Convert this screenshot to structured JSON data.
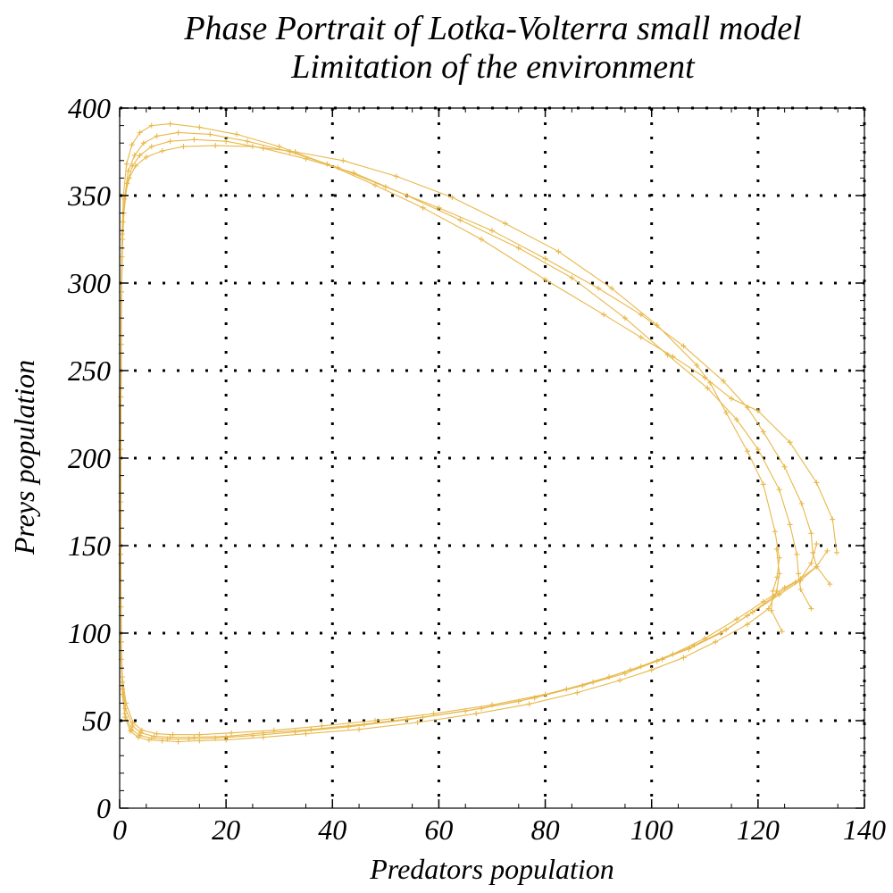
{
  "chart_data": {
    "type": "line",
    "title": "Phase Portrait of Lotka-Volterra small model",
    "subtitle": "Limitation of the environment",
    "xlabel": "Predators population",
    "ylabel": "Preys population",
    "xlim": [
      0,
      140
    ],
    "ylim": [
      0,
      400
    ],
    "xticks": [
      0,
      20,
      40,
      60,
      80,
      100,
      120,
      140
    ],
    "yticks": [
      0,
      50,
      100,
      150,
      200,
      250,
      300,
      350,
      400
    ],
    "grid": true,
    "legend": "none",
    "series_color": "#e8b84a",
    "marker": "plus",
    "series": [
      {
        "points": [
          [
            124.5,
            101
          ],
          [
            122.5,
            113
          ],
          [
            122.8,
            124
          ],
          [
            123.6,
            132
          ],
          [
            124,
            143
          ],
          [
            123.2,
            158
          ],
          [
            121,
            185
          ],
          [
            118,
            204
          ],
          [
            114,
            226
          ],
          [
            111,
            243
          ],
          [
            108.5,
            253
          ],
          [
            101,
            276
          ],
          [
            92.5,
            297
          ],
          [
            82.5,
            318
          ],
          [
            72.5,
            334
          ],
          [
            62.5,
            349
          ],
          [
            52,
            361
          ],
          [
            42,
            370
          ],
          [
            33,
            375
          ],
          [
            25,
            378
          ],
          [
            18,
            378.5
          ],
          [
            12,
            378
          ],
          [
            8,
            375.5
          ],
          [
            5,
            372
          ],
          [
            3,
            367
          ],
          [
            1.8,
            360
          ],
          [
            1,
            350
          ],
          [
            0.6,
            335
          ],
          [
            0.4,
            315
          ],
          [
            0.3,
            290
          ],
          [
            0.25,
            260
          ],
          [
            0.2,
            230
          ],
          [
            0.2,
            200
          ],
          [
            0.2,
            170
          ],
          [
            0.2,
            140
          ],
          [
            0.25,
            110
          ],
          [
            0.3,
            85
          ],
          [
            0.5,
            65
          ],
          [
            1,
            52
          ],
          [
            2,
            44
          ],
          [
            3.5,
            40.5
          ],
          [
            5.5,
            39
          ],
          [
            8,
            38.5
          ],
          [
            11,
            38
          ],
          [
            15,
            38.5
          ],
          [
            20,
            39
          ],
          [
            27,
            40.5
          ],
          [
            35,
            42.5
          ],
          [
            45,
            45
          ],
          [
            56,
            49
          ],
          [
            67,
            54
          ],
          [
            77,
            59.5
          ],
          [
            86,
            66
          ],
          [
            94,
            73
          ],
          [
            100,
            79
          ],
          [
            106,
            86
          ],
          [
            112,
            95
          ],
          [
            118,
            105
          ],
          [
            122,
            114
          ],
          [
            123.5,
            124
          ],
          [
            124,
            134
          ],
          [
            123.5,
            148
          ]
        ]
      },
      {
        "points": [
          [
            130,
            114
          ],
          [
            128,
            125
          ],
          [
            127.6,
            134
          ],
          [
            127.3,
            145
          ],
          [
            126,
            162
          ],
          [
            124,
            182
          ],
          [
            120,
            205
          ],
          [
            116,
            222
          ],
          [
            110.5,
            240
          ],
          [
            103,
            259
          ],
          [
            95,
            280
          ],
          [
            85,
            303
          ],
          [
            75,
            320
          ],
          [
            64,
            336
          ],
          [
            54,
            350
          ],
          [
            44,
            363
          ],
          [
            35,
            371
          ],
          [
            27,
            377
          ],
          [
            20,
            381
          ],
          [
            14,
            382
          ],
          [
            9.5,
            381
          ],
          [
            6,
            378
          ],
          [
            3.8,
            373
          ],
          [
            2.4,
            367
          ],
          [
            1.4,
            357
          ],
          [
            0.8,
            340
          ],
          [
            0.5,
            320
          ],
          [
            0.35,
            295
          ],
          [
            0.3,
            265
          ],
          [
            0.25,
            235
          ],
          [
            0.2,
            205
          ],
          [
            0.2,
            175
          ],
          [
            0.2,
            145
          ],
          [
            0.25,
            115
          ],
          [
            0.3,
            90
          ],
          [
            0.5,
            68
          ],
          [
            1,
            54
          ],
          [
            2.2,
            45
          ],
          [
            3.8,
            41.5
          ],
          [
            6,
            40
          ],
          [
            9,
            39.5
          ],
          [
            13,
            39.5
          ],
          [
            18,
            40
          ],
          [
            25,
            41.5
          ],
          [
            33,
            43.5
          ],
          [
            43,
            46.5
          ],
          [
            54,
            50.5
          ],
          [
            65,
            55.5
          ],
          [
            75,
            61
          ],
          [
            84,
            68
          ],
          [
            92,
            75
          ],
          [
            98,
            81
          ],
          [
            104,
            88
          ],
          [
            110,
            97
          ],
          [
            116,
            108
          ],
          [
            121,
            118
          ],
          [
            125,
            126
          ],
          [
            128,
            131
          ],
          [
            130,
            140
          ],
          [
            131,
            151
          ]
        ]
      },
      {
        "points": [
          [
            133.5,
            128
          ],
          [
            131,
            138
          ],
          [
            130.3,
            146
          ],
          [
            130,
            157
          ],
          [
            128.2,
            174
          ],
          [
            125,
            195
          ],
          [
            121,
            215
          ],
          [
            118,
            229
          ],
          [
            113.5,
            244
          ],
          [
            106,
            264
          ],
          [
            98,
            282
          ],
          [
            90,
            297
          ],
          [
            80,
            314
          ],
          [
            70,
            330
          ],
          [
            60,
            343
          ],
          [
            50,
            355
          ],
          [
            41,
            366
          ],
          [
            32,
            375
          ],
          [
            24,
            381
          ],
          [
            17,
            385
          ],
          [
            11,
            386
          ],
          [
            7,
            384
          ],
          [
            4.5,
            380
          ],
          [
            2.8,
            373
          ],
          [
            1.6,
            364
          ],
          [
            0.9,
            348
          ],
          [
            0.55,
            325
          ],
          [
            0.4,
            300
          ],
          [
            0.3,
            270
          ],
          [
            0.25,
            240
          ],
          [
            0.2,
            210
          ],
          [
            0.2,
            180
          ],
          [
            0.2,
            150
          ],
          [
            0.25,
            120
          ],
          [
            0.3,
            95
          ],
          [
            0.5,
            72
          ],
          [
            1.1,
            57
          ],
          [
            2.4,
            47
          ],
          [
            4,
            43
          ],
          [
            6.5,
            41
          ],
          [
            9.5,
            40.5
          ],
          [
            14,
            40.5
          ],
          [
            20,
            41
          ],
          [
            27,
            43
          ],
          [
            36,
            45
          ],
          [
            46,
            48
          ],
          [
            57,
            52
          ],
          [
            68,
            57
          ],
          [
            78,
            63
          ],
          [
            87,
            70
          ],
          [
            95,
            77
          ],
          [
            101,
            84
          ],
          [
            107,
            91
          ],
          [
            113,
            100
          ],
          [
            118,
            110
          ],
          [
            123,
            121
          ],
          [
            127,
            129
          ],
          [
            131,
            138
          ],
          [
            133,
            147
          ]
        ]
      },
      {
        "points": [
          [
            134.8,
            146
          ],
          [
            134,
            165
          ],
          [
            131,
            186
          ],
          [
            126,
            209
          ],
          [
            120,
            227
          ],
          [
            115,
            234
          ],
          [
            110,
            246
          ],
          [
            104,
            258
          ],
          [
            98,
            269
          ],
          [
            91,
            282
          ],
          [
            80,
            302
          ],
          [
            68,
            325
          ],
          [
            57,
            343
          ],
          [
            48,
            356
          ],
          [
            39,
            368
          ],
          [
            30,
            378
          ],
          [
            22,
            385
          ],
          [
            15,
            389
          ],
          [
            9.5,
            391
          ],
          [
            6,
            390
          ],
          [
            3.8,
            386
          ],
          [
            2.3,
            379
          ],
          [
            1.3,
            368
          ],
          [
            0.7,
            350
          ],
          [
            0.45,
            328
          ],
          [
            0.35,
            300
          ],
          [
            0.3,
            270
          ],
          [
            0.25,
            240
          ],
          [
            0.2,
            210
          ],
          [
            0.2,
            180
          ],
          [
            0.2,
            150
          ],
          [
            0.25,
            120
          ],
          [
            0.3,
            95
          ],
          [
            0.5,
            75
          ],
          [
            1.2,
            60
          ],
          [
            2.5,
            49
          ],
          [
            4.2,
            44.5
          ],
          [
            7,
            42.5
          ],
          [
            10,
            42
          ],
          [
            15,
            42
          ],
          [
            21,
            43
          ],
          [
            29,
            44.5
          ],
          [
            38,
            47
          ],
          [
            48,
            50
          ],
          [
            59,
            54
          ],
          [
            70,
            59
          ],
          [
            80,
            65
          ],
          [
            89,
            72
          ],
          [
            96,
            79
          ],
          [
            102,
            85
          ],
          [
            108,
            93
          ],
          [
            114,
            102
          ],
          [
            119,
            112
          ],
          [
            124,
            122
          ],
          [
            128,
            130
          ],
          [
            131,
            138
          ]
        ]
      }
    ]
  }
}
